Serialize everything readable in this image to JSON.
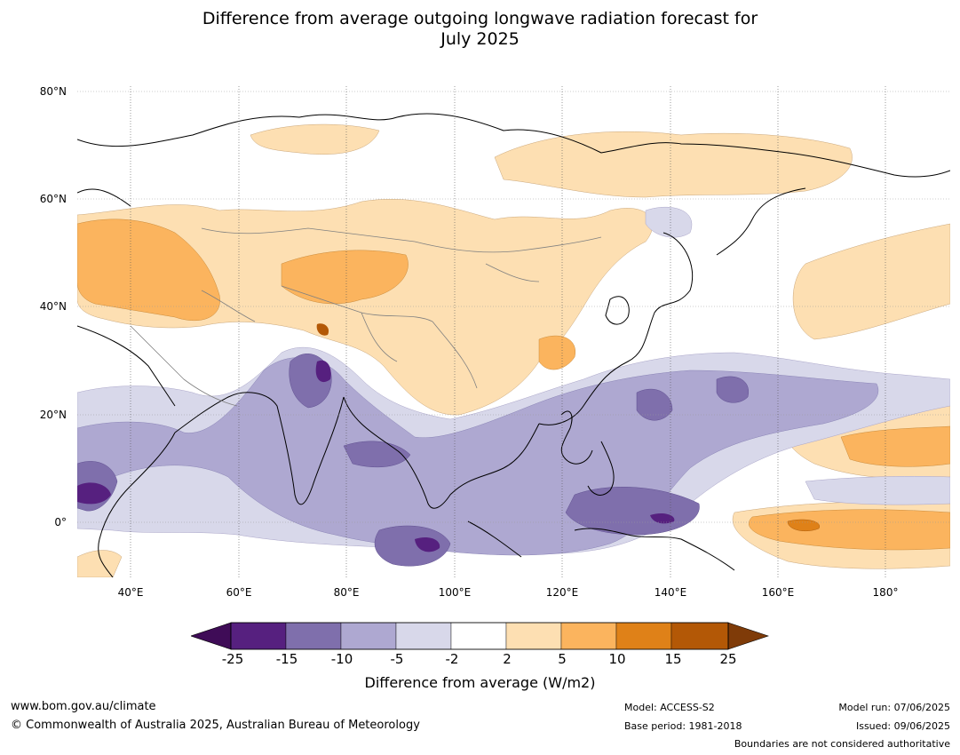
{
  "title_line1": "Difference from average outgoing longwave radiation forecast for",
  "title_line2": "July 2025",
  "map": {
    "lat_labels": [
      "80°N",
      "60°N",
      "40°N",
      "20°N",
      "0°"
    ],
    "lon_labels": [
      "40°E",
      "60°E",
      "80°E",
      "100°E",
      "120°E",
      "140°E",
      "160°E",
      "180°"
    ],
    "extent": {
      "lon_min": 30,
      "lon_max": 192,
      "lat_min": -10,
      "lat_max": 80
    }
  },
  "colorbar": {
    "title": "Difference from average (W/m2)",
    "tick_labels": [
      "-25",
      "-15",
      "-10",
      "-5",
      "-2",
      "2",
      "5",
      "10",
      "15",
      "25"
    ],
    "colors": [
      "#3f0c57",
      "#56207f",
      "#7f6fac",
      "#aea8d1",
      "#d8d8ea",
      "#ffffff",
      "#fddfb2",
      "#fbb45e",
      "#df8118",
      "#b35806",
      "#7f3b08"
    ]
  },
  "footer": {
    "url": "www.bom.gov.au/climate",
    "copyright": "© Commonwealth of Australia 2025, Australian Bureau of Meteorology",
    "model": "Model: ACCESS-S2",
    "base_period": "Base period: 1981-2018",
    "model_run": "Model run: 07/06/2025",
    "issued": "Issued: 09/06/2025",
    "disclaimer": "Boundaries are not considered authoritative"
  }
}
